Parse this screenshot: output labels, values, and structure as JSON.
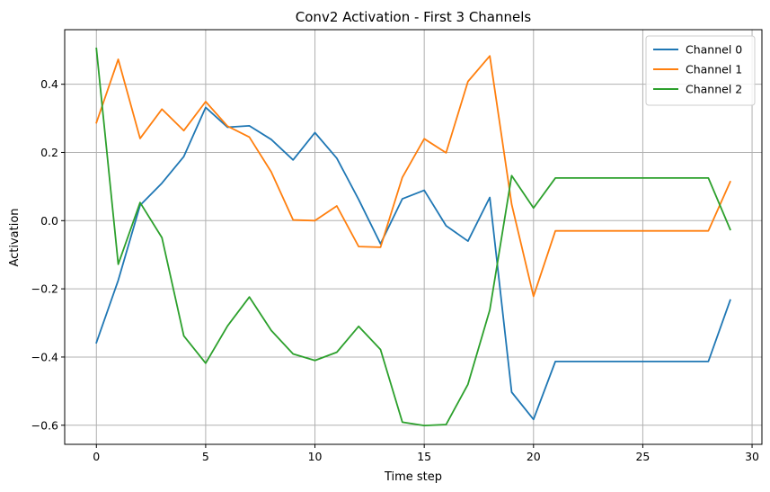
{
  "chart_data": {
    "type": "line",
    "title": "Conv2 Activation - First 3 Channels",
    "xlabel": "Time step",
    "ylabel": "Activation",
    "xlim": [
      -1.45,
      30.45
    ],
    "ylim": [
      -0.656,
      0.56
    ],
    "xticks": [
      0,
      5,
      10,
      15,
      20,
      25,
      30
    ],
    "xtick_labels": [
      "0",
      "5",
      "10",
      "15",
      "20",
      "25",
      "30"
    ],
    "yticks": [
      -0.6,
      -0.4,
      -0.2,
      0.0,
      0.2,
      0.4
    ],
    "ytick_labels": [
      "−0.6",
      "−0.4",
      "−0.2",
      "0.0",
      "0.2",
      "0.4"
    ],
    "grid": true,
    "legend_position": "top-right",
    "x": [
      0,
      1,
      2,
      3,
      4,
      5,
      6,
      7,
      8,
      9,
      10,
      11,
      12,
      13,
      14,
      15,
      16,
      17,
      18,
      19,
      20,
      21,
      22,
      23,
      24,
      25,
      26,
      27,
      28,
      29
    ],
    "series": [
      {
        "name": "Channel 0",
        "color": "#1f77b4",
        "values": [
          -0.358,
          -0.175,
          0.045,
          0.11,
          0.188,
          0.332,
          0.274,
          0.278,
          0.238,
          0.178,
          0.258,
          0.183,
          0.062,
          -0.068,
          0.064,
          0.089,
          -0.015,
          -0.06,
          0.068,
          -0.503,
          -0.583,
          -0.413,
          -0.413,
          -0.413,
          -0.413,
          -0.413,
          -0.413,
          -0.413,
          -0.413,
          -0.233
        ]
      },
      {
        "name": "Channel 1",
        "color": "#ff7f0e",
        "values": [
          0.287,
          0.473,
          0.241,
          0.327,
          0.264,
          0.349,
          0.277,
          0.245,
          0.143,
          0.002,
          0.0,
          0.043,
          -0.076,
          -0.078,
          0.127,
          0.24,
          0.199,
          0.408,
          0.483,
          0.048,
          -0.222,
          -0.03,
          -0.03,
          -0.03,
          -0.03,
          -0.03,
          -0.03,
          -0.03,
          -0.03,
          0.114
        ]
      },
      {
        "name": "Channel 2",
        "color": "#2ca02c",
        "values": [
          0.505,
          -0.128,
          0.053,
          -0.05,
          -0.338,
          -0.418,
          -0.309,
          -0.224,
          -0.322,
          -0.391,
          -0.41,
          -0.386,
          -0.31,
          -0.378,
          -0.591,
          -0.601,
          -0.598,
          -0.48,
          -0.262,
          0.132,
          0.037,
          0.125,
          0.125,
          0.125,
          0.125,
          0.125,
          0.125,
          0.125,
          0.125,
          -0.026
        ]
      }
    ]
  }
}
